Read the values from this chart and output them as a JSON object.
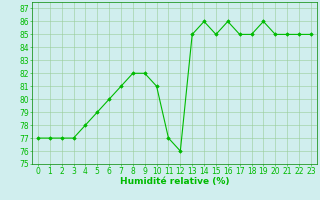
{
  "x": [
    0,
    1,
    2,
    3,
    4,
    5,
    6,
    7,
    8,
    9,
    10,
    11,
    12,
    13,
    14,
    15,
    16,
    17,
    18,
    19,
    20,
    21,
    22,
    23
  ],
  "y": [
    77,
    77,
    77,
    77,
    78,
    79,
    80,
    81,
    82,
    82,
    81,
    77,
    76,
    85,
    86,
    85,
    86,
    85,
    85,
    86,
    85,
    85,
    85,
    85
  ],
  "line_color": "#00bb00",
  "marker": "D",
  "marker_size": 1.8,
  "linewidth": 0.8,
  "xlabel": "Humidité relative (%)",
  "xlabel_fontsize": 6.5,
  "xlabel_color": "#00bb00",
  "ylim": [
    75,
    87.5
  ],
  "xlim": [
    -0.5,
    23.5
  ],
  "yticks": [
    75,
    76,
    77,
    78,
    79,
    80,
    81,
    82,
    83,
    84,
    85,
    86,
    87
  ],
  "xticks": [
    0,
    1,
    2,
    3,
    4,
    5,
    6,
    7,
    8,
    9,
    10,
    11,
    12,
    13,
    14,
    15,
    16,
    17,
    18,
    19,
    20,
    21,
    22,
    23
  ],
  "tick_fontsize": 5.5,
  "grid_color": "#99cc99",
  "bg_color": "#d0eeee",
  "fig_bg_color": "#d0eeee",
  "spine_color": "#008800"
}
